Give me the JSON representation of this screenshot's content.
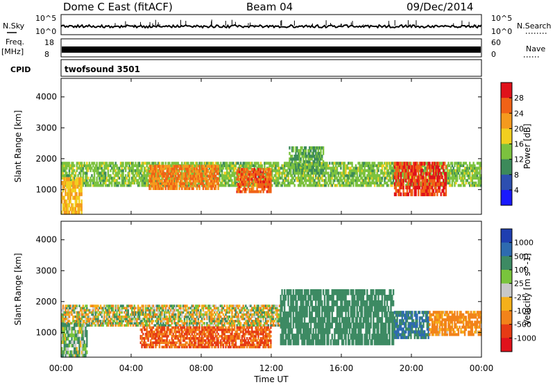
{
  "header": {
    "station": "Dome C East (fitACF)",
    "beam": "Beam 04",
    "date": "09/Dec/2014"
  },
  "left_labels": {
    "nsky": "N.Sky",
    "freq": "Freq.",
    "mhz": "[MHz]",
    "cpid": "CPID"
  },
  "right_labels": {
    "nsearch": "N.Search",
    "nave": "Nave"
  },
  "sky_axis": {
    "left_top": "10^5",
    "left_bottom": "10^0",
    "right_top": "10^5",
    "right_bottom": "10^0"
  },
  "freq_axis": {
    "left_top": "18",
    "left_bottom": "8",
    "right_top": "60",
    "right_bottom": "0"
  },
  "cpid_text": "twofsound 3501",
  "x_axis": {
    "label": "Time UT",
    "ticks": [
      "00:00",
      "04:00",
      "08:00",
      "12:00",
      "16:00",
      "20:00",
      "00:00"
    ]
  },
  "power_panel": {
    "ylabel": "Slant Range [km]",
    "yticks": [
      1000,
      2000,
      3000,
      4000
    ],
    "colorbar": {
      "label": "Power [dB]",
      "ticks": [
        "4",
        "8",
        "12",
        "16",
        "20",
        "24",
        "28"
      ],
      "colors": [
        "#1a1aff",
        "#2d4fb0",
        "#3c8a5a",
        "#7cc23f",
        "#f2cf1f",
        "#f59a1e",
        "#f06216",
        "#e0121b"
      ]
    }
  },
  "velocity_panel": {
    "ylabel": "Slant Range [km]",
    "yticks": [
      1000,
      2000,
      3000,
      4000
    ],
    "colorbar": {
      "label": "Velocity [m s^-1]",
      "ticks": [
        "1000",
        "500",
        "100",
        "25",
        "-25",
        "-100",
        "-500",
        "-1000"
      ],
      "colors": [
        "#1f3fb0",
        "#2e6bb0",
        "#3d8a63",
        "#79c43c",
        "#c8c8c8",
        "#f5b01a",
        "#f2831a",
        "#e63b14",
        "#e0121b"
      ]
    }
  },
  "chart_data": {
    "type": "heatmap",
    "title": "Dome C East (fitACF)  Beam 04  09/Dec/2014",
    "xlabel": "Time UT",
    "ylabel": "Slant Range [km]",
    "xlim": [
      "00:00",
      "24:00"
    ],
    "ylim": [
      200,
      4600
    ],
    "panels": [
      {
        "name": "Power [dB]",
        "clim": [
          0,
          30
        ],
        "regions": [
          {
            "t_start": 0,
            "t_end": 24,
            "range_min": 1100,
            "range_max": 1900,
            "typical_value": 14
          },
          {
            "t_start": 0,
            "t_end": 1.2,
            "range_min": 200,
            "range_max": 1400,
            "typical_value": 20
          },
          {
            "t_start": 5,
            "t_end": 9,
            "range_min": 1000,
            "range_max": 1800,
            "typical_value": 24
          },
          {
            "t_start": 10,
            "t_end": 12,
            "range_min": 900,
            "range_max": 1700,
            "typical_value": 26
          },
          {
            "t_start": 13,
            "t_end": 15,
            "range_min": 1500,
            "range_max": 2400,
            "typical_value": 12
          },
          {
            "t_start": 19,
            "t_end": 22,
            "range_min": 800,
            "range_max": 1900,
            "typical_value": 28
          }
        ]
      },
      {
        "name": "Velocity [m s^-1]",
        "clim": [
          -1000,
          1000
        ],
        "regions": [
          {
            "t_start": 0,
            "t_end": 12.5,
            "range_min": 1200,
            "range_max": 1900,
            "typical_value": 0
          },
          {
            "t_start": 0,
            "t_end": 1.5,
            "range_min": 200,
            "range_max": 1300,
            "typical_value": 100
          },
          {
            "t_start": 4.5,
            "t_end": 12,
            "range_min": 500,
            "range_max": 1200,
            "typical_value": -500
          },
          {
            "t_start": 12.5,
            "t_end": 19,
            "range_min": 600,
            "range_max": 2400,
            "typical_value": 300
          },
          {
            "t_start": 19,
            "t_end": 21,
            "range_min": 800,
            "range_max": 1700,
            "typical_value": 500
          },
          {
            "t_start": 21,
            "t_end": 24,
            "range_min": 900,
            "range_max": 1700,
            "typical_value": -200
          }
        ]
      }
    ]
  }
}
